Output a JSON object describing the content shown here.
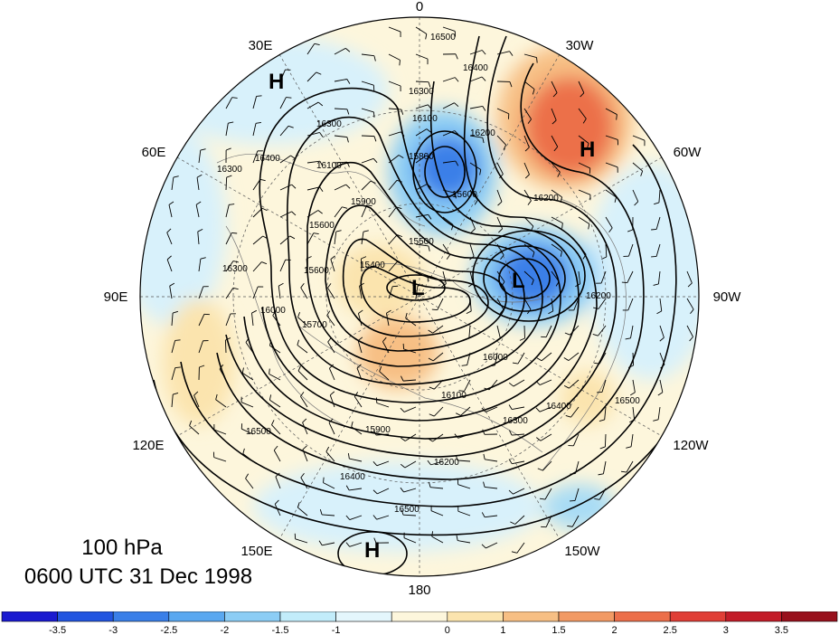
{
  "title": {
    "level": "100 hPa",
    "time": "0600 UTC 31 Dec 1998"
  },
  "longitude_labels": [
    {
      "text": "0"
    },
    {
      "text": "30W"
    },
    {
      "text": "60W"
    },
    {
      "text": "90W"
    },
    {
      "text": "120W"
    },
    {
      "text": "150W"
    },
    {
      "text": "180"
    },
    {
      "text": "150E"
    },
    {
      "text": "120E"
    },
    {
      "text": "90E"
    },
    {
      "text": "60E"
    },
    {
      "text": "30E"
    }
  ],
  "centers": [
    {
      "type": "H",
      "name": "high-center"
    },
    {
      "type": "H",
      "name": "high-center"
    },
    {
      "type": "H",
      "name": "high-center"
    },
    {
      "type": "L",
      "name": "low-center"
    },
    {
      "type": "L",
      "name": "low-center"
    }
  ],
  "contour_labels": [
    "16500",
    "16400",
    "16300",
    "16100",
    "16200",
    "15800",
    "15600",
    "16300",
    "16200",
    "16100",
    "15900",
    "15600",
    "15500",
    "15400",
    "15600",
    "15700",
    "16300",
    "16000",
    "16200",
    "16000",
    "16100",
    "16300",
    "16400",
    "16500",
    "15900",
    "16200",
    "16400",
    "16500",
    "16300",
    "16400",
    "16500"
  ],
  "colorbar": {
    "colors": [
      "#1a1ad0",
      "#2255e0",
      "#3a7fe8",
      "#5aa8f0",
      "#8ccdf5",
      "#c2ecfa",
      "#e4f6fc",
      "#fdf6dc",
      "#fbe4ae",
      "#f7bf84",
      "#f29a64",
      "#ec6f4a",
      "#e03e36",
      "#c31c28",
      "#98101c"
    ],
    "tick_labels": [
      "-3.5",
      "-3",
      "-2.5",
      "-2",
      "-1.5",
      "-1",
      "0",
      "1",
      "1.5",
      "2",
      "2.5",
      "3",
      "3.5"
    ]
  }
}
